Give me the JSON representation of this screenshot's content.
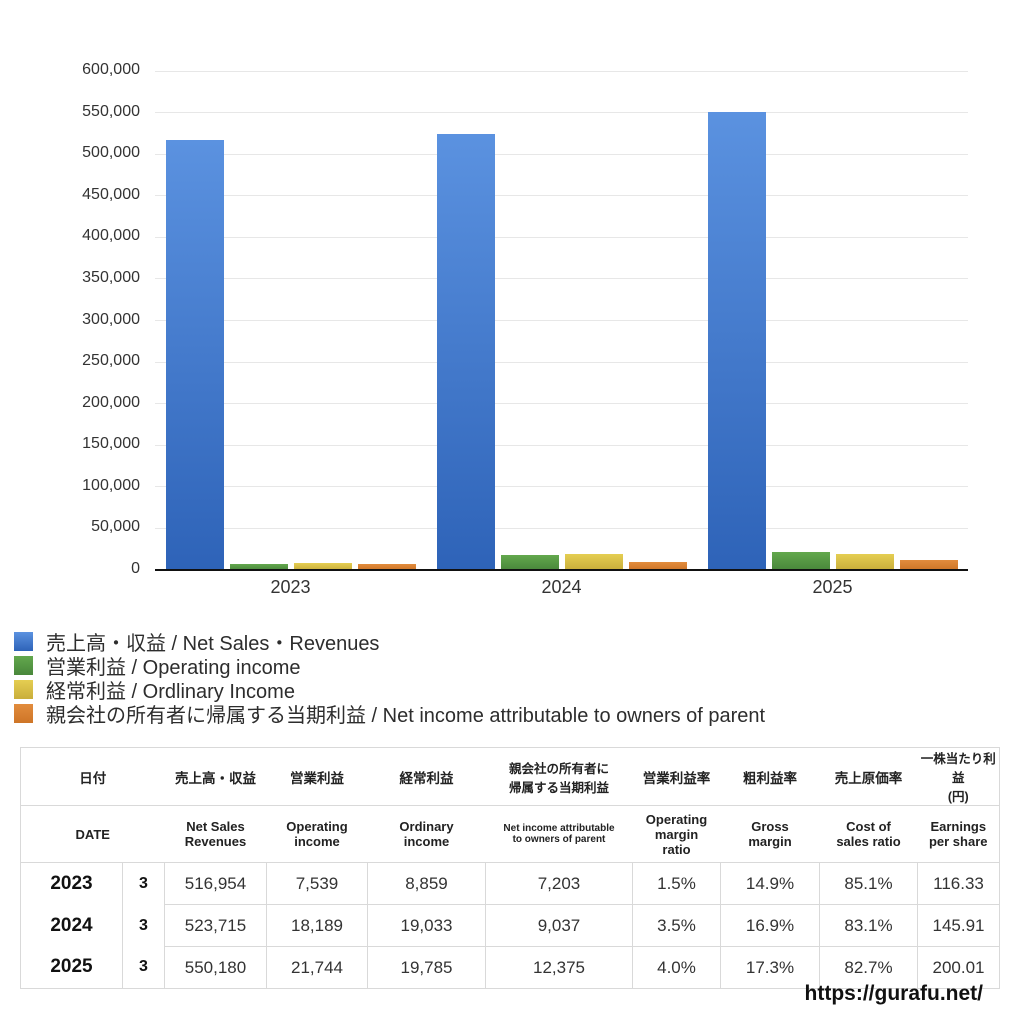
{
  "chart_data": {
    "type": "bar",
    "title": "",
    "categories": [
      "2023",
      "2024",
      "2025"
    ],
    "series": [
      {
        "name": "売上高・収益 / Net Sales・Revenues",
        "values": [
          516954,
          523715,
          550180
        ],
        "color_top": "#5B92E0",
        "color_bottom": "#2E63B8"
      },
      {
        "name": "営業利益 / Operating income",
        "values": [
          7539,
          18189,
          21744
        ],
        "color_top": "#63A84D",
        "color_bottom": "#49873B"
      },
      {
        "name": "経常利益 / Ordlinary Income",
        "values": [
          8859,
          19033,
          19785
        ],
        "color_top": "#E5CE52",
        "color_bottom": "#C9AE3B"
      },
      {
        "name": "親会社の所有者に帰属する当期利益 / Net income attributable to owners of parent",
        "values": [
          7203,
          9037,
          12375
        ],
        "color_top": "#E28C3D",
        "color_bottom": "#CE7527"
      }
    ],
    "xlabel": "",
    "ylabel": "",
    "ylim": [
      0,
      600000
    ],
    "ytick_step": 50000,
    "grid": true,
    "legend_position": "below-left"
  },
  "table": {
    "headers_jp": [
      "日付",
      "売上高・収益",
      "営業利益",
      "経常利益",
      "親会社の所有者に\n帰属する当期利益",
      "営業利益率",
      "粗利益率",
      "売上原価率",
      "一株当たり利益\n(円)"
    ],
    "headers_en": [
      "DATE",
      "Net Sales\nRevenues",
      "Operating\nincome",
      "Ordinary\nincome",
      "Net income attributable\nto owners of parent",
      "Operating\nmargin\nratio",
      "Gross\nmargin",
      "Cost of\nsales ratio",
      "Earnings\nper share"
    ],
    "rows": [
      {
        "year": "2023",
        "month": "3",
        "values": [
          "516,954",
          "7,539",
          "8,859",
          "7,203",
          "1.5%",
          "14.9%",
          "85.1%",
          "116.33"
        ]
      },
      {
        "year": "2024",
        "month": "3",
        "values": [
          "523,715",
          "18,189",
          "19,033",
          "9,037",
          "3.5%",
          "16.9%",
          "83.1%",
          "145.91"
        ]
      },
      {
        "year": "2025",
        "month": "3",
        "values": [
          "550,180",
          "21,744",
          "19,785",
          "12,375",
          "4.0%",
          "17.3%",
          "82.7%",
          "200.01"
        ]
      }
    ]
  },
  "footer": {
    "url": "https://gurafu.net/"
  }
}
